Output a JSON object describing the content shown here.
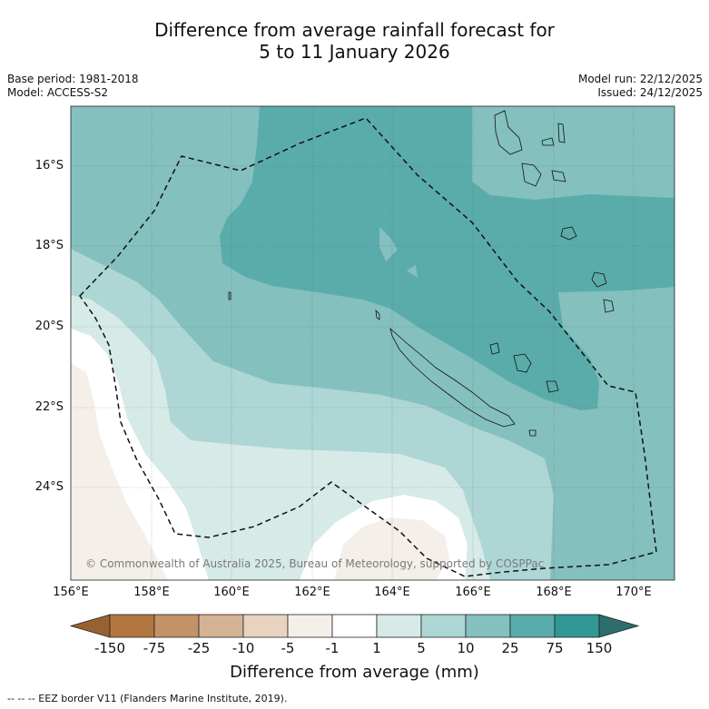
{
  "title": {
    "line1": "Difference from average rainfall forecast for",
    "line2": "5 to 11 January 2026"
  },
  "meta": {
    "base_period": "Base period: 1981-2018",
    "model": "Model: ACCESS-S2",
    "model_run": "Model run: 22/12/2025",
    "issued": "Issued: 24/12/2025"
  },
  "axes": {
    "lat_labels": [
      "16°S",
      "18°S",
      "20°S",
      "22°S",
      "24°S"
    ],
    "lon_labels": [
      "156°E",
      "158°E",
      "160°E",
      "162°E",
      "164°E",
      "166°E",
      "168°E",
      "170°E"
    ]
  },
  "colorbar": {
    "ticks": [
      "-150",
      "-75",
      "-25",
      "-10",
      "-5",
      "-1",
      "1",
      "5",
      "10",
      "25",
      "75",
      "150"
    ],
    "colors": [
      "#9a6130",
      "#b27640",
      "#c39268",
      "#d4b294",
      "#e7d3c0",
      "#f4efe8",
      "#ffffff",
      "#d6eae8",
      "#add6d5",
      "#84c0be",
      "#5aacab",
      "#329896",
      "#2d6e6c"
    ],
    "title": "Difference from average (mm)"
  },
  "copyright": "© Commonwealth of Australia 2025, Bureau of Meteorology, supported by COSPPac",
  "footer": "-- -- -- EEZ border V11 (Flanders Marine Institute, 2019)."
}
